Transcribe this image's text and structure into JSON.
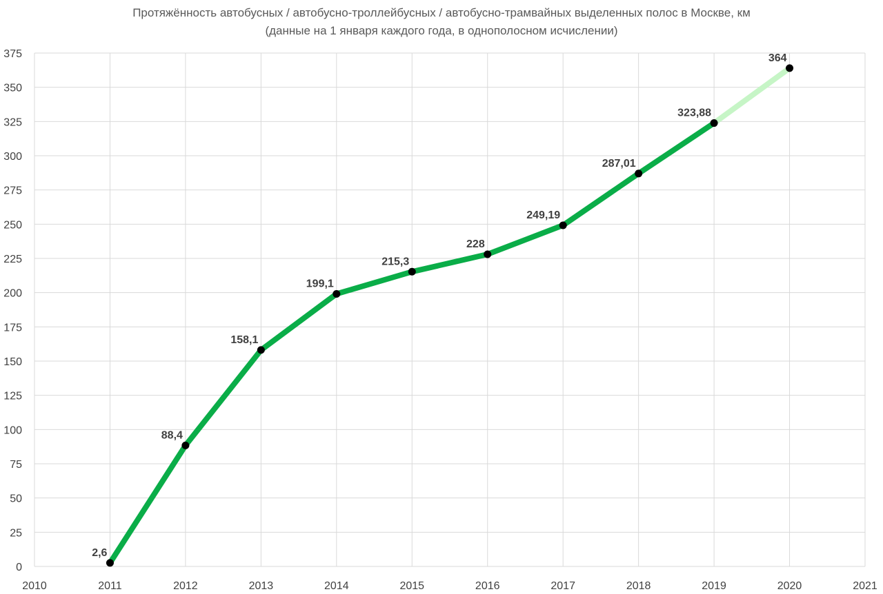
{
  "chart_data": {
    "type": "line",
    "title": "Протяжённость автобусных / автобусно-троллейбусных / автобусно-трамвайных выделенных полос в Москве, км",
    "subtitle": "(данные на 1 января каждого года, в однополосном исчислении)",
    "xlabel": "",
    "ylabel": "",
    "xlim": [
      2010,
      2021
    ],
    "ylim": [
      0,
      375
    ],
    "x_ticks": [
      2010,
      2011,
      2012,
      2013,
      2014,
      2015,
      2016,
      2017,
      2018,
      2019,
      2020,
      2021
    ],
    "y_ticks": [
      0,
      25,
      50,
      75,
      100,
      125,
      150,
      175,
      200,
      225,
      250,
      275,
      300,
      325,
      350,
      375
    ],
    "grid": true,
    "series": [
      {
        "x": [
          2011,
          2012,
          2013,
          2014,
          2015,
          2016,
          2017,
          2018,
          2019,
          2020
        ],
        "values": [
          2.6,
          88.4,
          158.1,
          199.1,
          215.3,
          228,
          249.19,
          287.01,
          323.88,
          364
        ],
        "labels": [
          "2,6",
          "88,4",
          "158,1",
          "199,1",
          "215,3",
          "228",
          "249,19",
          "287,01",
          "323,88",
          "364"
        ],
        "color": "#0aad48",
        "last_segment_color": "#c6f5c6",
        "marker_color": "#000000"
      }
    ]
  }
}
